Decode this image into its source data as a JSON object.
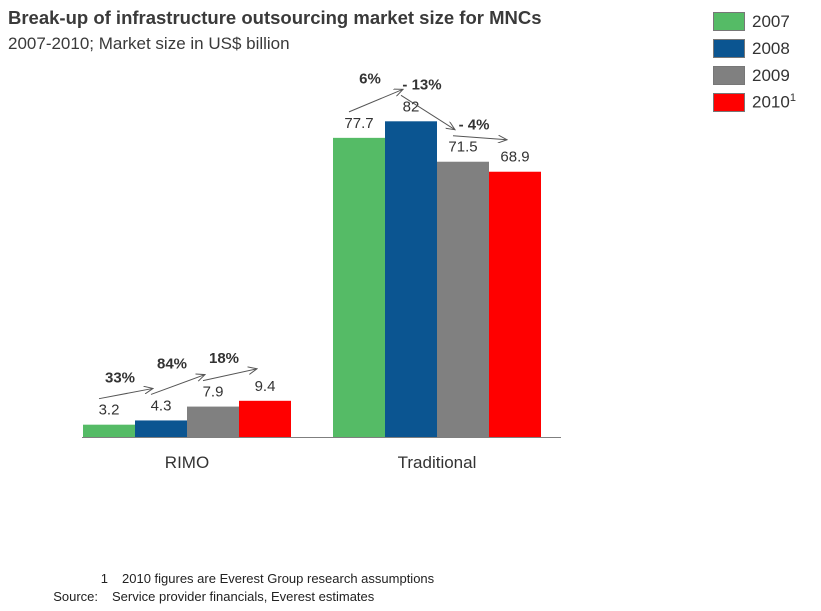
{
  "chart_data": {
    "type": "bar",
    "title": "Break-up of infrastructure outsourcing market size for MNCs",
    "subtitle": "2007-2010; Market size in US$ billion",
    "categories": [
      "RIMO",
      "Traditional"
    ],
    "series": [
      {
        "name": "2007",
        "values": [
          3.2,
          77.7
        ],
        "color": "#55bb66"
      },
      {
        "name": "2008",
        "values": [
          4.3,
          82
        ],
        "color": "#0b5591"
      },
      {
        "name": "2009",
        "values": [
          7.9,
          71.5
        ],
        "color": "#808080"
      },
      {
        "name": "2010",
        "name_sup": "1",
        "values": [
          9.4,
          68.9
        ],
        "color": "#ff0000"
      }
    ],
    "growth_annotations": [
      [
        "33%",
        "84%",
        "18%"
      ],
      [
        "6%",
        "- 13%",
        "- 4%"
      ]
    ],
    "ylim": [
      0,
      100
    ],
    "xlabel": "",
    "ylabel": "",
    "grid": false,
    "legend": "top-right"
  },
  "footnotes": [
    {
      "key": "1",
      "text": "2010 figures are Everest Group research assumptions"
    },
    {
      "key": "Source:",
      "text": "Service provider financials, Everest estimates"
    }
  ]
}
